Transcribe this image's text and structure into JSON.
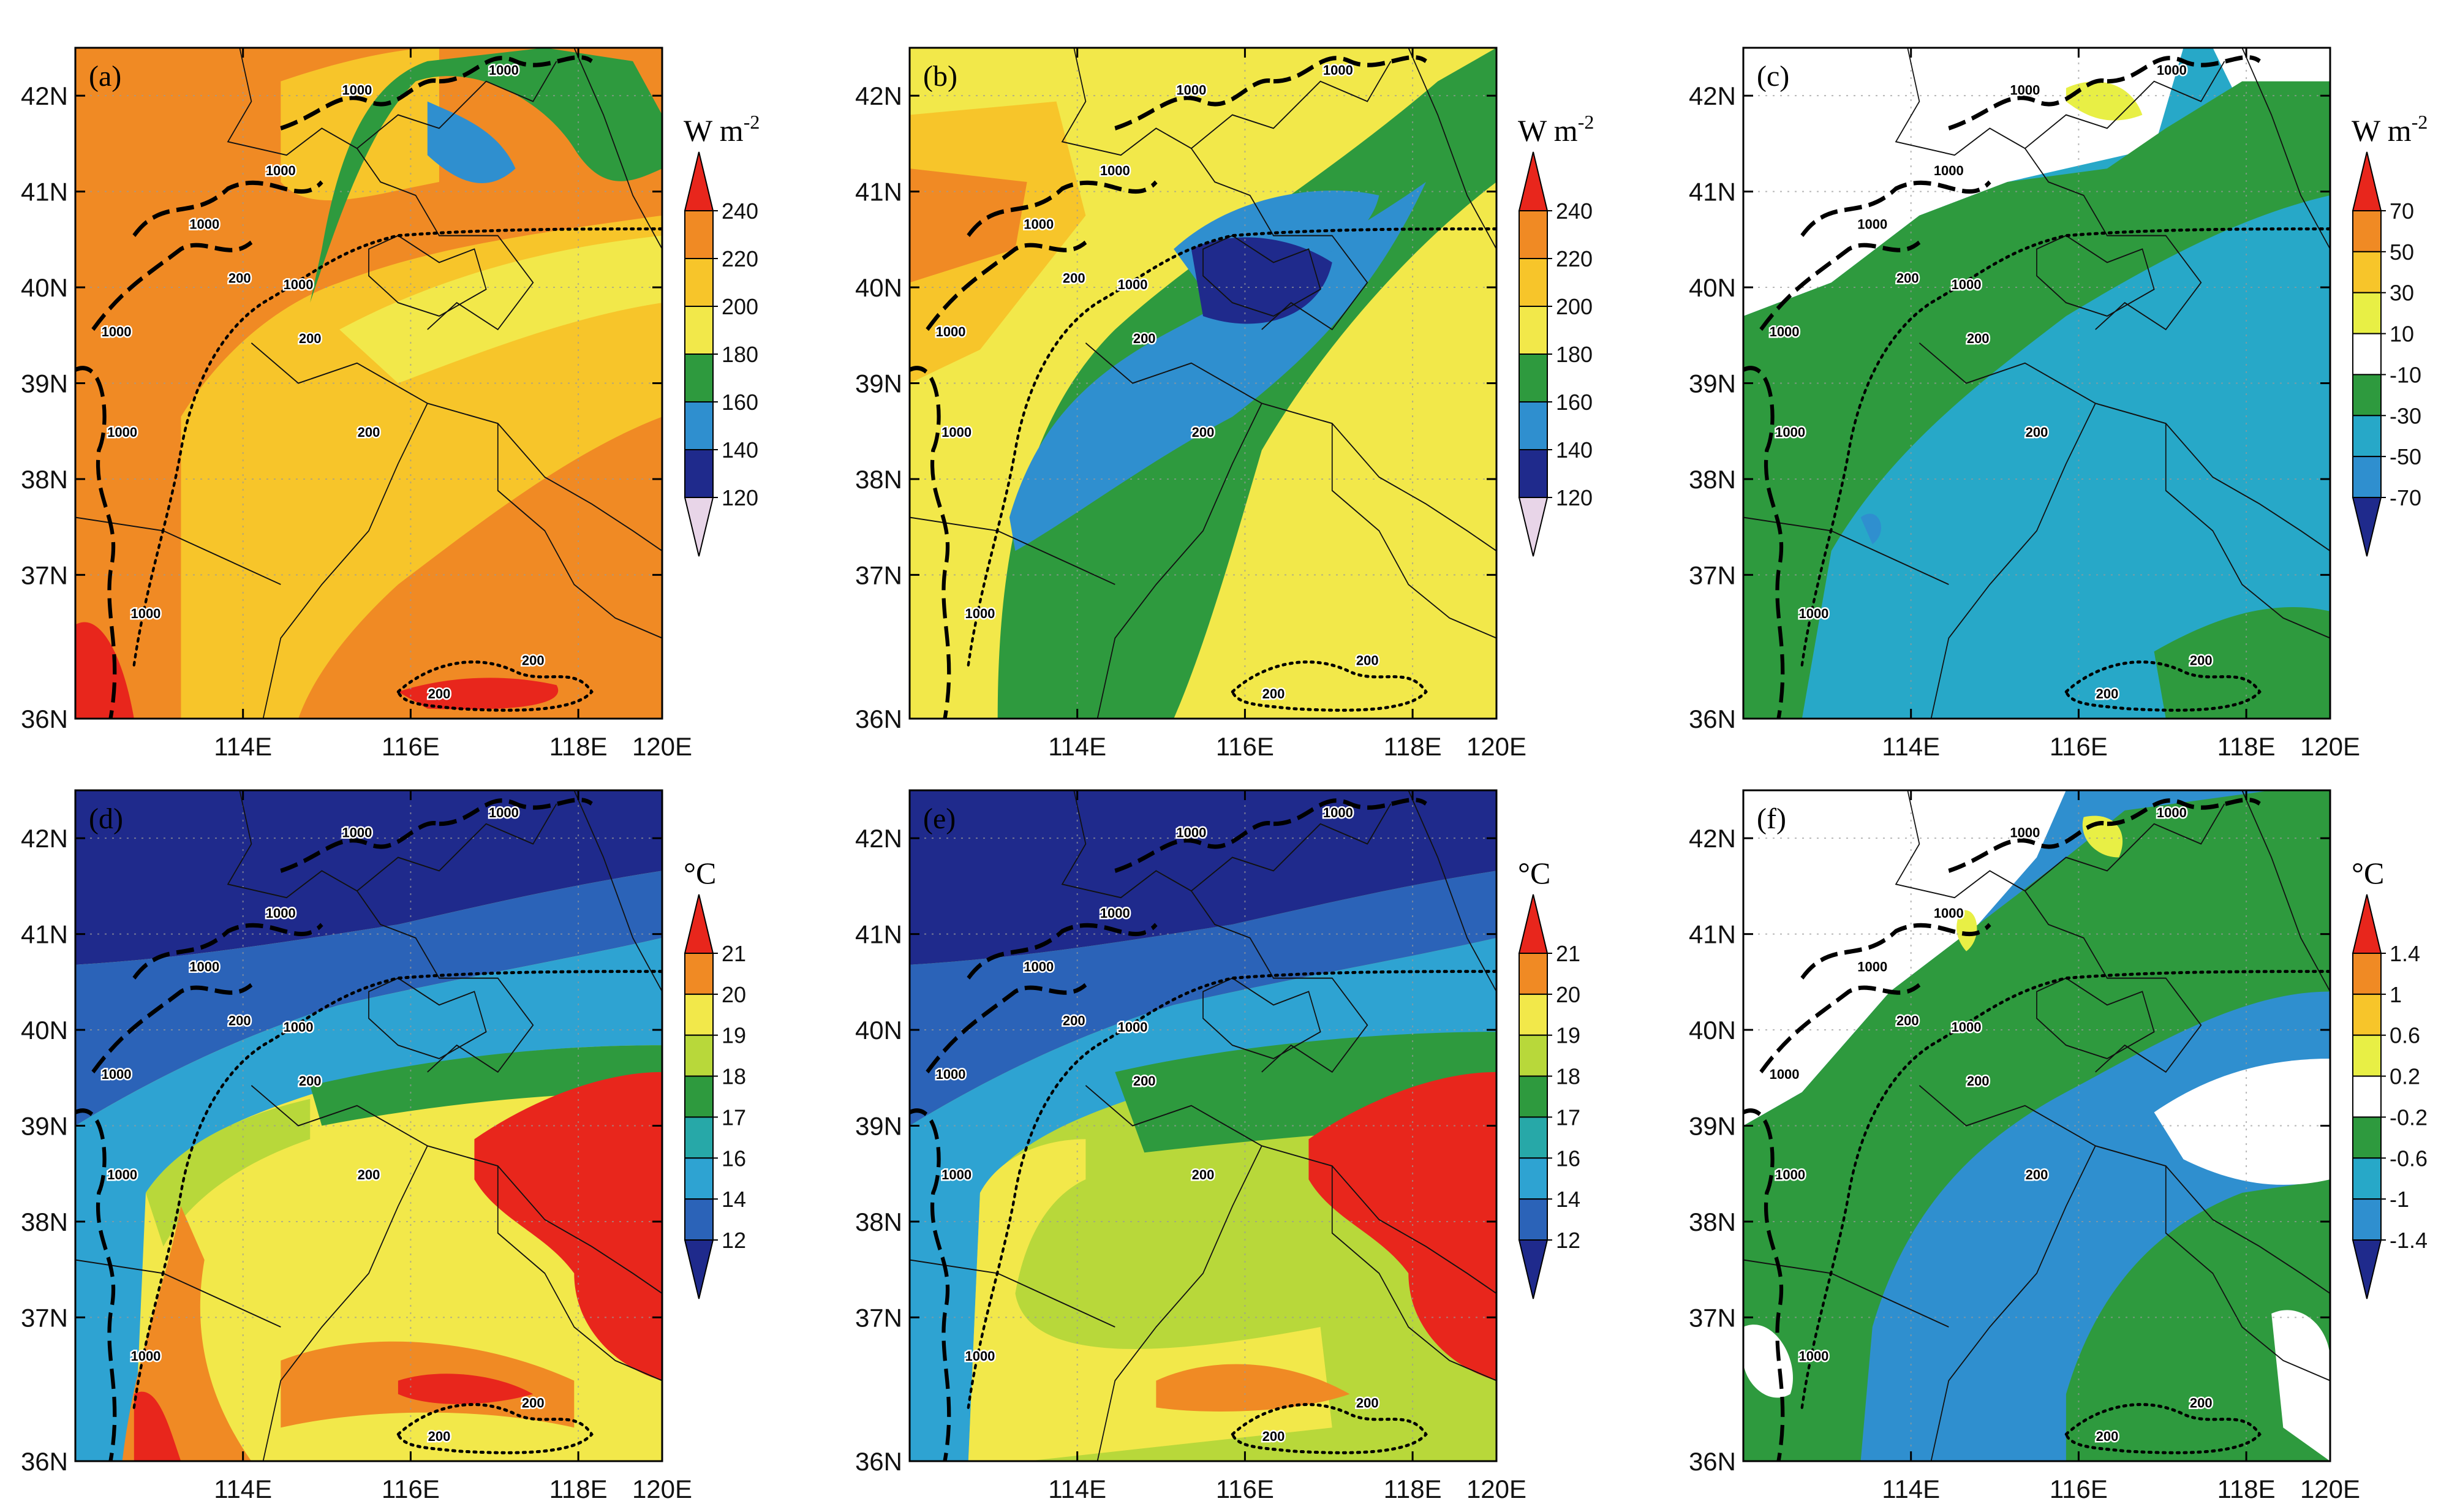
{
  "figure": {
    "longitude_ticks": [
      "114E",
      "116E",
      "118E",
      "120E"
    ],
    "latitude_ticks": [
      "42N",
      "41N",
      "40N",
      "39N",
      "38N",
      "37N",
      "36N"
    ],
    "contour_labels": {
      "elevation_high": "1000",
      "elevation_low": "200"
    },
    "palettes": {
      "radiation": [
        "#e8d5e8",
        "#1f2a8c",
        "#2f8fcf",
        "#2e9a3e",
        "#f2e84a",
        "#f7c52a",
        "#f08a24",
        "#e8261c"
      ],
      "difference": [
        "#1f2a8c",
        "#2f8fcf",
        "#27a8c8",
        "#2e9a3e",
        "#ffffff",
        "#e8ef45",
        "#f7c52a",
        "#f08a24",
        "#e8261c"
      ],
      "temperature": [
        "#1f2a8c",
        "#2b63b8",
        "#2ea3d2",
        "#27a8a8",
        "#2e9a3e",
        "#b8d83a",
        "#f2e84a",
        "#f08a24",
        "#e8261c"
      ]
    },
    "panels": [
      {
        "label": "(a)",
        "unit": "W m",
        "unit_sup": "-2",
        "levels": [
          "120",
          "140",
          "160",
          "180",
          "200",
          "220",
          "240"
        ],
        "palette": "radiation",
        "scheme": "radA"
      },
      {
        "label": "(b)",
        "unit": "W m",
        "unit_sup": "-2",
        "levels": [
          "120",
          "140",
          "160",
          "180",
          "200",
          "220",
          "240"
        ],
        "palette": "radiation",
        "scheme": "radB"
      },
      {
        "label": "(c)",
        "unit": "W m",
        "unit_sup": "-2",
        "levels": [
          "-70",
          "-50",
          "-30",
          "-10",
          "10",
          "30",
          "50",
          "70"
        ],
        "palette": "difference",
        "scheme": "diffC"
      },
      {
        "label": "(d)",
        "unit": "°C",
        "unit_sup": "",
        "levels": [
          "12",
          "14",
          "16",
          "17",
          "18",
          "19",
          "20",
          "21"
        ],
        "palette": "temperature",
        "scheme": "tempD"
      },
      {
        "label": "(e)",
        "unit": "°C",
        "unit_sup": "",
        "levels": [
          "12",
          "14",
          "16",
          "17",
          "18",
          "19",
          "20",
          "21"
        ],
        "palette": "temperature",
        "scheme": "tempE"
      },
      {
        "label": "(f)",
        "unit": "°C",
        "unit_sup": "",
        "levels": [
          "-1.4",
          "-1",
          "-0.6",
          "-0.2",
          "0.2",
          "0.6",
          "1",
          "1.4"
        ],
        "palette": "difference",
        "scheme": "diffF"
      }
    ]
  }
}
